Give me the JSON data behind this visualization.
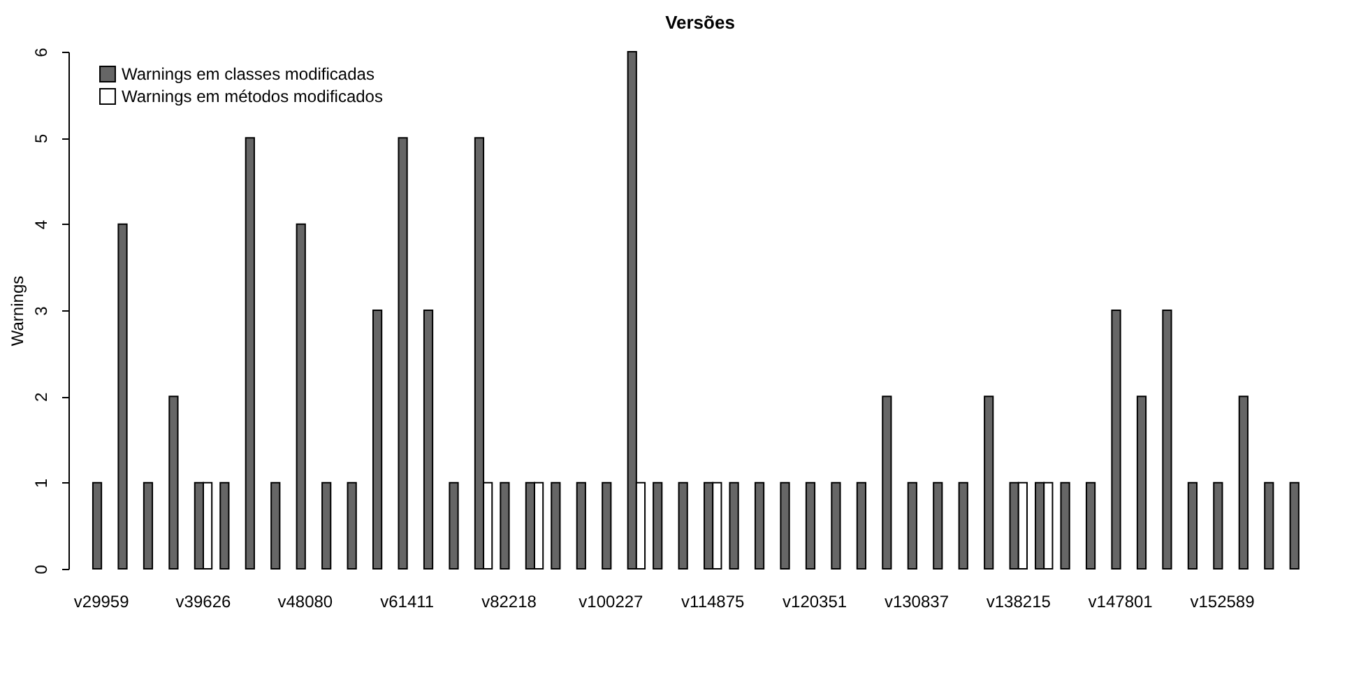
{
  "chart_data": {
    "type": "bar",
    "title": "Versões",
    "ylabel": "Warnings",
    "categories": [
      "v29959",
      null,
      null,
      null,
      "v39626",
      null,
      null,
      null,
      "v48080",
      null,
      null,
      null,
      "v61411",
      null,
      null,
      null,
      "v82218",
      null,
      null,
      null,
      "v100227",
      null,
      null,
      null,
      "v114875",
      null,
      null,
      null,
      "v120351",
      null,
      null,
      null,
      "v130837",
      null,
      null,
      null,
      "v138215",
      null,
      null,
      null,
      "v147801",
      null,
      null,
      null,
      "v152589",
      null,
      null,
      null
    ],
    "series": [
      {
        "name": "Warnings em classes modificadas",
        "color": "#666666",
        "values": [
          1,
          4,
          1,
          2,
          1,
          1,
          5,
          1,
          4,
          1,
          1,
          3,
          5,
          3,
          1,
          5,
          1,
          1,
          1,
          1,
          1,
          6,
          1,
          1,
          1,
          1,
          1,
          1,
          1,
          1,
          1,
          2,
          1,
          1,
          1,
          2,
          1,
          1,
          1,
          1,
          3,
          2,
          3,
          1,
          1,
          2,
          1,
          1
        ]
      },
      {
        "name": "Warnings em métodos modificados",
        "color": "#ffffff",
        "values": [
          0,
          0,
          0,
          0,
          1,
          0,
          0,
          0,
          0,
          0,
          0,
          0,
          0,
          0,
          0,
          1,
          0,
          1,
          0,
          0,
          0,
          1,
          0,
          0,
          1,
          0,
          0,
          0,
          0,
          0,
          0,
          0,
          0,
          0,
          0,
          0,
          1,
          1,
          0,
          0,
          0,
          0,
          0,
          0,
          0,
          0,
          0,
          0
        ]
      }
    ],
    "ylim": [
      0,
      6
    ],
    "yticks": [
      0,
      1,
      2,
      3,
      4,
      5,
      6
    ],
    "grid": false,
    "legend": "top left"
  }
}
